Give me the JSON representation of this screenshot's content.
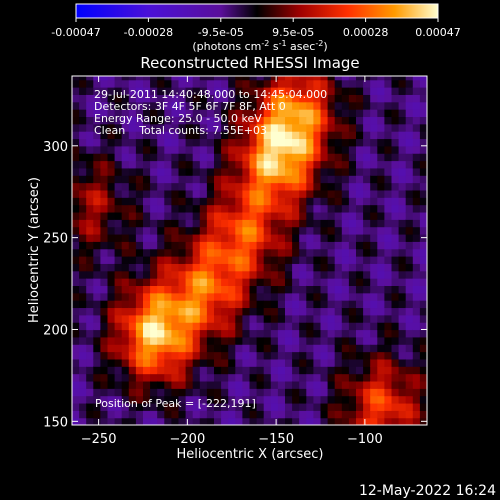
{
  "colorbar": {
    "ticks": [
      "-0.00047",
      "-0.00028",
      "-9.5e-05",
      "9.5e-05",
      "0.00028",
      "0.00047"
    ],
    "range": [
      -0.00047,
      0.00047
    ],
    "colors": [
      "#0000ff",
      "#5a0fd0",
      "#7a1fa8",
      "#000000",
      "#b30000",
      "#ff3c00",
      "#ffa000",
      "#ffe060",
      "#ffffe0"
    ]
  },
  "chart_data": {
    "type": "heatmap",
    "title": "Reconstructed RHESSI Image",
    "xlabel": "Heliocentric X (arcsec)",
    "ylabel": "Heliocentric Y (arcsec)",
    "xlim": [
      -265,
      -65
    ],
    "ylim": [
      148,
      338
    ],
    "xticks": [
      -250,
      -200,
      -150,
      -100
    ],
    "yticks": [
      150,
      200,
      250,
      300
    ],
    "color_range": [
      -0.00047,
      0.00047
    ],
    "sources": [
      {
        "x": -218,
        "y": 198,
        "peak": 0.00047
      },
      {
        "x": -190,
        "y": 222,
        "peak": 0.00032
      },
      {
        "x": -168,
        "y": 252,
        "peak": 0.0003
      },
      {
        "x": -150,
        "y": 292,
        "peak": 0.0004
      },
      {
        "x": -138,
        "y": 318,
        "peak": 0.00035
      },
      {
        "x": -90,
        "y": 158,
        "peak": 0.0003
      },
      {
        "x": -255,
        "y": 268,
        "peak": 0.00018
      }
    ],
    "annotations": [
      "29-Jul-2011 14:40:48.000 to 14:45:04.000",
      "Detectors: 3F 4F 5F 6F 7F 8F, Att 0",
      "Energy Range: 25.0 - 50.0 keV",
      "Clean    Total counts: 7.55E+03"
    ],
    "peak_label": "Position of Peak = [-222,191]"
  },
  "footer": {
    "timestamp": "12-May-2022 16:24"
  }
}
